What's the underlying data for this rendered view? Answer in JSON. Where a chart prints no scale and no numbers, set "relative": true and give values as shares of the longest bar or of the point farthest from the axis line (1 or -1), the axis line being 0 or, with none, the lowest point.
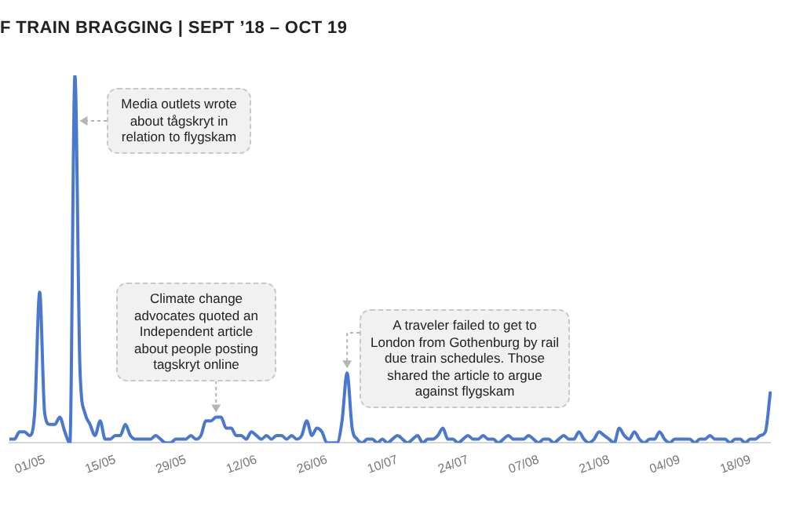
{
  "chart_data": {
    "type": "line",
    "title": "F TRAIN BRAGGING | SEPT ’18 – OCT 19",
    "relative": true,
    "color": "#4a78cf",
    "grid": false,
    "legend": false,
    "marker": "none",
    "categories": [
      null,
      null,
      null,
      null,
      null,
      null,
      null,
      "01/05",
      null,
      null,
      null,
      null,
      null,
      null,
      null,
      null,
      null,
      null,
      null,
      null,
      null,
      "15/05",
      null,
      null,
      null,
      null,
      null,
      null,
      null,
      null,
      null,
      null,
      null,
      null,
      null,
      "29/05",
      null,
      null,
      null,
      null,
      null,
      null,
      null,
      null,
      null,
      null,
      null,
      null,
      null,
      "12/06",
      null,
      null,
      null,
      null,
      null,
      null,
      null,
      null,
      null,
      null,
      null,
      null,
      null,
      "26/06",
      null,
      null,
      null,
      null,
      null,
      null,
      null,
      null,
      null,
      null,
      null,
      null,
      null,
      "10/07",
      null,
      null,
      null,
      null,
      null,
      null,
      null,
      null,
      null,
      null,
      null,
      null,
      null,
      "24/07",
      null,
      null,
      null,
      null,
      null,
      null,
      null,
      null,
      null,
      null,
      null,
      null,
      null,
      "07/08",
      null,
      null,
      null,
      null,
      null,
      null,
      null,
      null,
      null,
      null,
      null,
      null,
      null,
      "21/08",
      null,
      null,
      null,
      null,
      null,
      null,
      null,
      null,
      null,
      null,
      null,
      null,
      null,
      "04/09",
      null,
      null,
      null,
      null,
      null,
      null,
      null,
      null,
      null,
      null,
      null,
      null,
      null,
      "18/09",
      null,
      null,
      null,
      null
    ],
    "values": [
      0.01,
      0.01,
      0.03,
      0.03,
      0.02,
      0.08,
      0.41,
      0.08,
      0.05,
      0.05,
      0.07,
      0.03,
      0,
      1,
      0.2,
      0.08,
      0.05,
      0.02,
      0.06,
      0.01,
      0.01,
      0.02,
      0.02,
      0.05,
      0.02,
      0.01,
      0.01,
      0.01,
      0.01,
      0.02,
      0.01,
      0,
      0,
      0.01,
      0.01,
      0.01,
      0.02,
      0.01,
      0.02,
      0.06,
      0.06,
      0.07,
      0.07,
      0.04,
      0.04,
      0.02,
      0.02,
      0.01,
      0.03,
      0.02,
      0.01,
      0.02,
      0.01,
      0.02,
      0.02,
      0.01,
      0.02,
      0.01,
      0.02,
      0.06,
      0.02,
      0.04,
      0.03,
      0,
      0,
      0,
      0.06,
      0.19,
      0.04,
      0.01,
      0,
      0.01,
      0.01,
      0,
      0.01,
      0,
      0.01,
      0.02,
      0.01,
      0,
      0.01,
      0.02,
      0,
      0.01,
      0.01,
      0.02,
      0.04,
      0.01,
      0.01,
      0,
      0.01,
      0.02,
      0.01,
      0.01,
      0.02,
      0.01,
      0.01,
      0,
      0.01,
      0.02,
      0.01,
      0.01,
      0.01,
      0.02,
      0.01,
      0,
      0.01,
      0.01,
      0,
      0.01,
      0.02,
      0.01,
      0.01,
      0.03,
      0.01,
      0,
      0.01,
      0.03,
      0.02,
      0.01,
      0,
      0.04,
      0.02,
      0.01,
      0.03,
      0.01,
      0,
      0.01,
      0.01,
      0.03,
      0.01,
      0,
      0.01,
      0.01,
      0.01,
      0.01,
      0,
      0.01,
      0.01,
      0.02,
      0.01,
      0.01,
      0.01,
      0,
      0.01,
      0.01,
      0,
      0.01,
      0.01,
      0.02,
      0.03,
      0.14
    ],
    "annotations": [
      "Media outlets wrote about tågskryt in relation to flygskam",
      "Climate change advocates quoted an Independent article about people posting tagskryt online",
      "A traveler failed to get to London from Gothenburg by rail due train schedules. Those shared the article to argue against flygskam"
    ]
  }
}
